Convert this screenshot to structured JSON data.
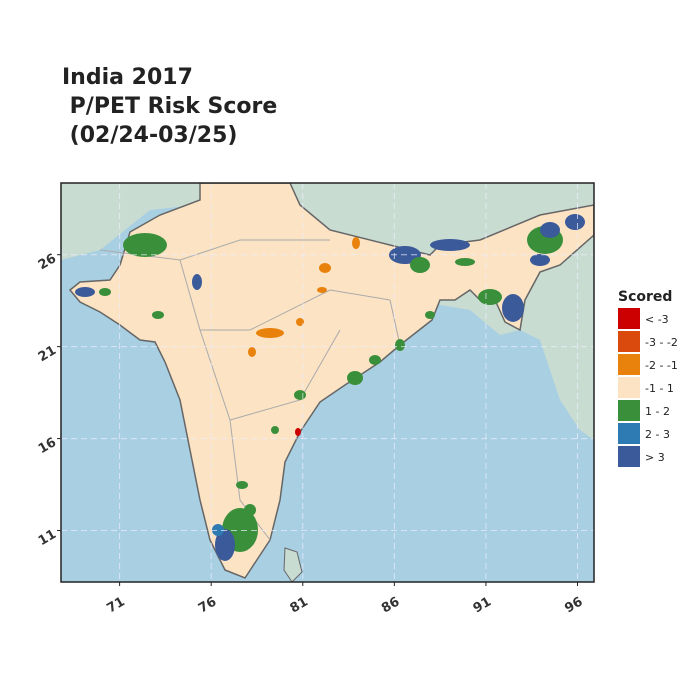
{
  "chart_data": {
    "type": "map",
    "title_lines": [
      "India 2017",
      " P/PET Risk Score",
      " (02/24-03/25)"
    ],
    "xlim": [
      67.8,
      96.9
    ],
    "ylim": [
      8.2,
      29.9
    ],
    "xticks": [
      71,
      76,
      81,
      86,
      91,
      96
    ],
    "yticks": [
      11,
      16,
      21,
      26
    ],
    "grid": true,
    "legend": {
      "title": "Scored",
      "items": [
        {
          "label": "< -3",
          "color": "#cc0000"
        },
        {
          "label": "-3 - -2",
          "color": "#d94a0c"
        },
        {
          "label": "-2 - -1",
          "color": "#e8820c"
        },
        {
          "label": "-1 - 1",
          "color": "#fbe3c4"
        },
        {
          "label": "1 - 2",
          "color": "#3a8f3a"
        },
        {
          "label": "2 - 3",
          "color": "#2e7bb3"
        },
        {
          "label": "> 3",
          "color": "#3b5a9a"
        }
      ]
    }
  }
}
